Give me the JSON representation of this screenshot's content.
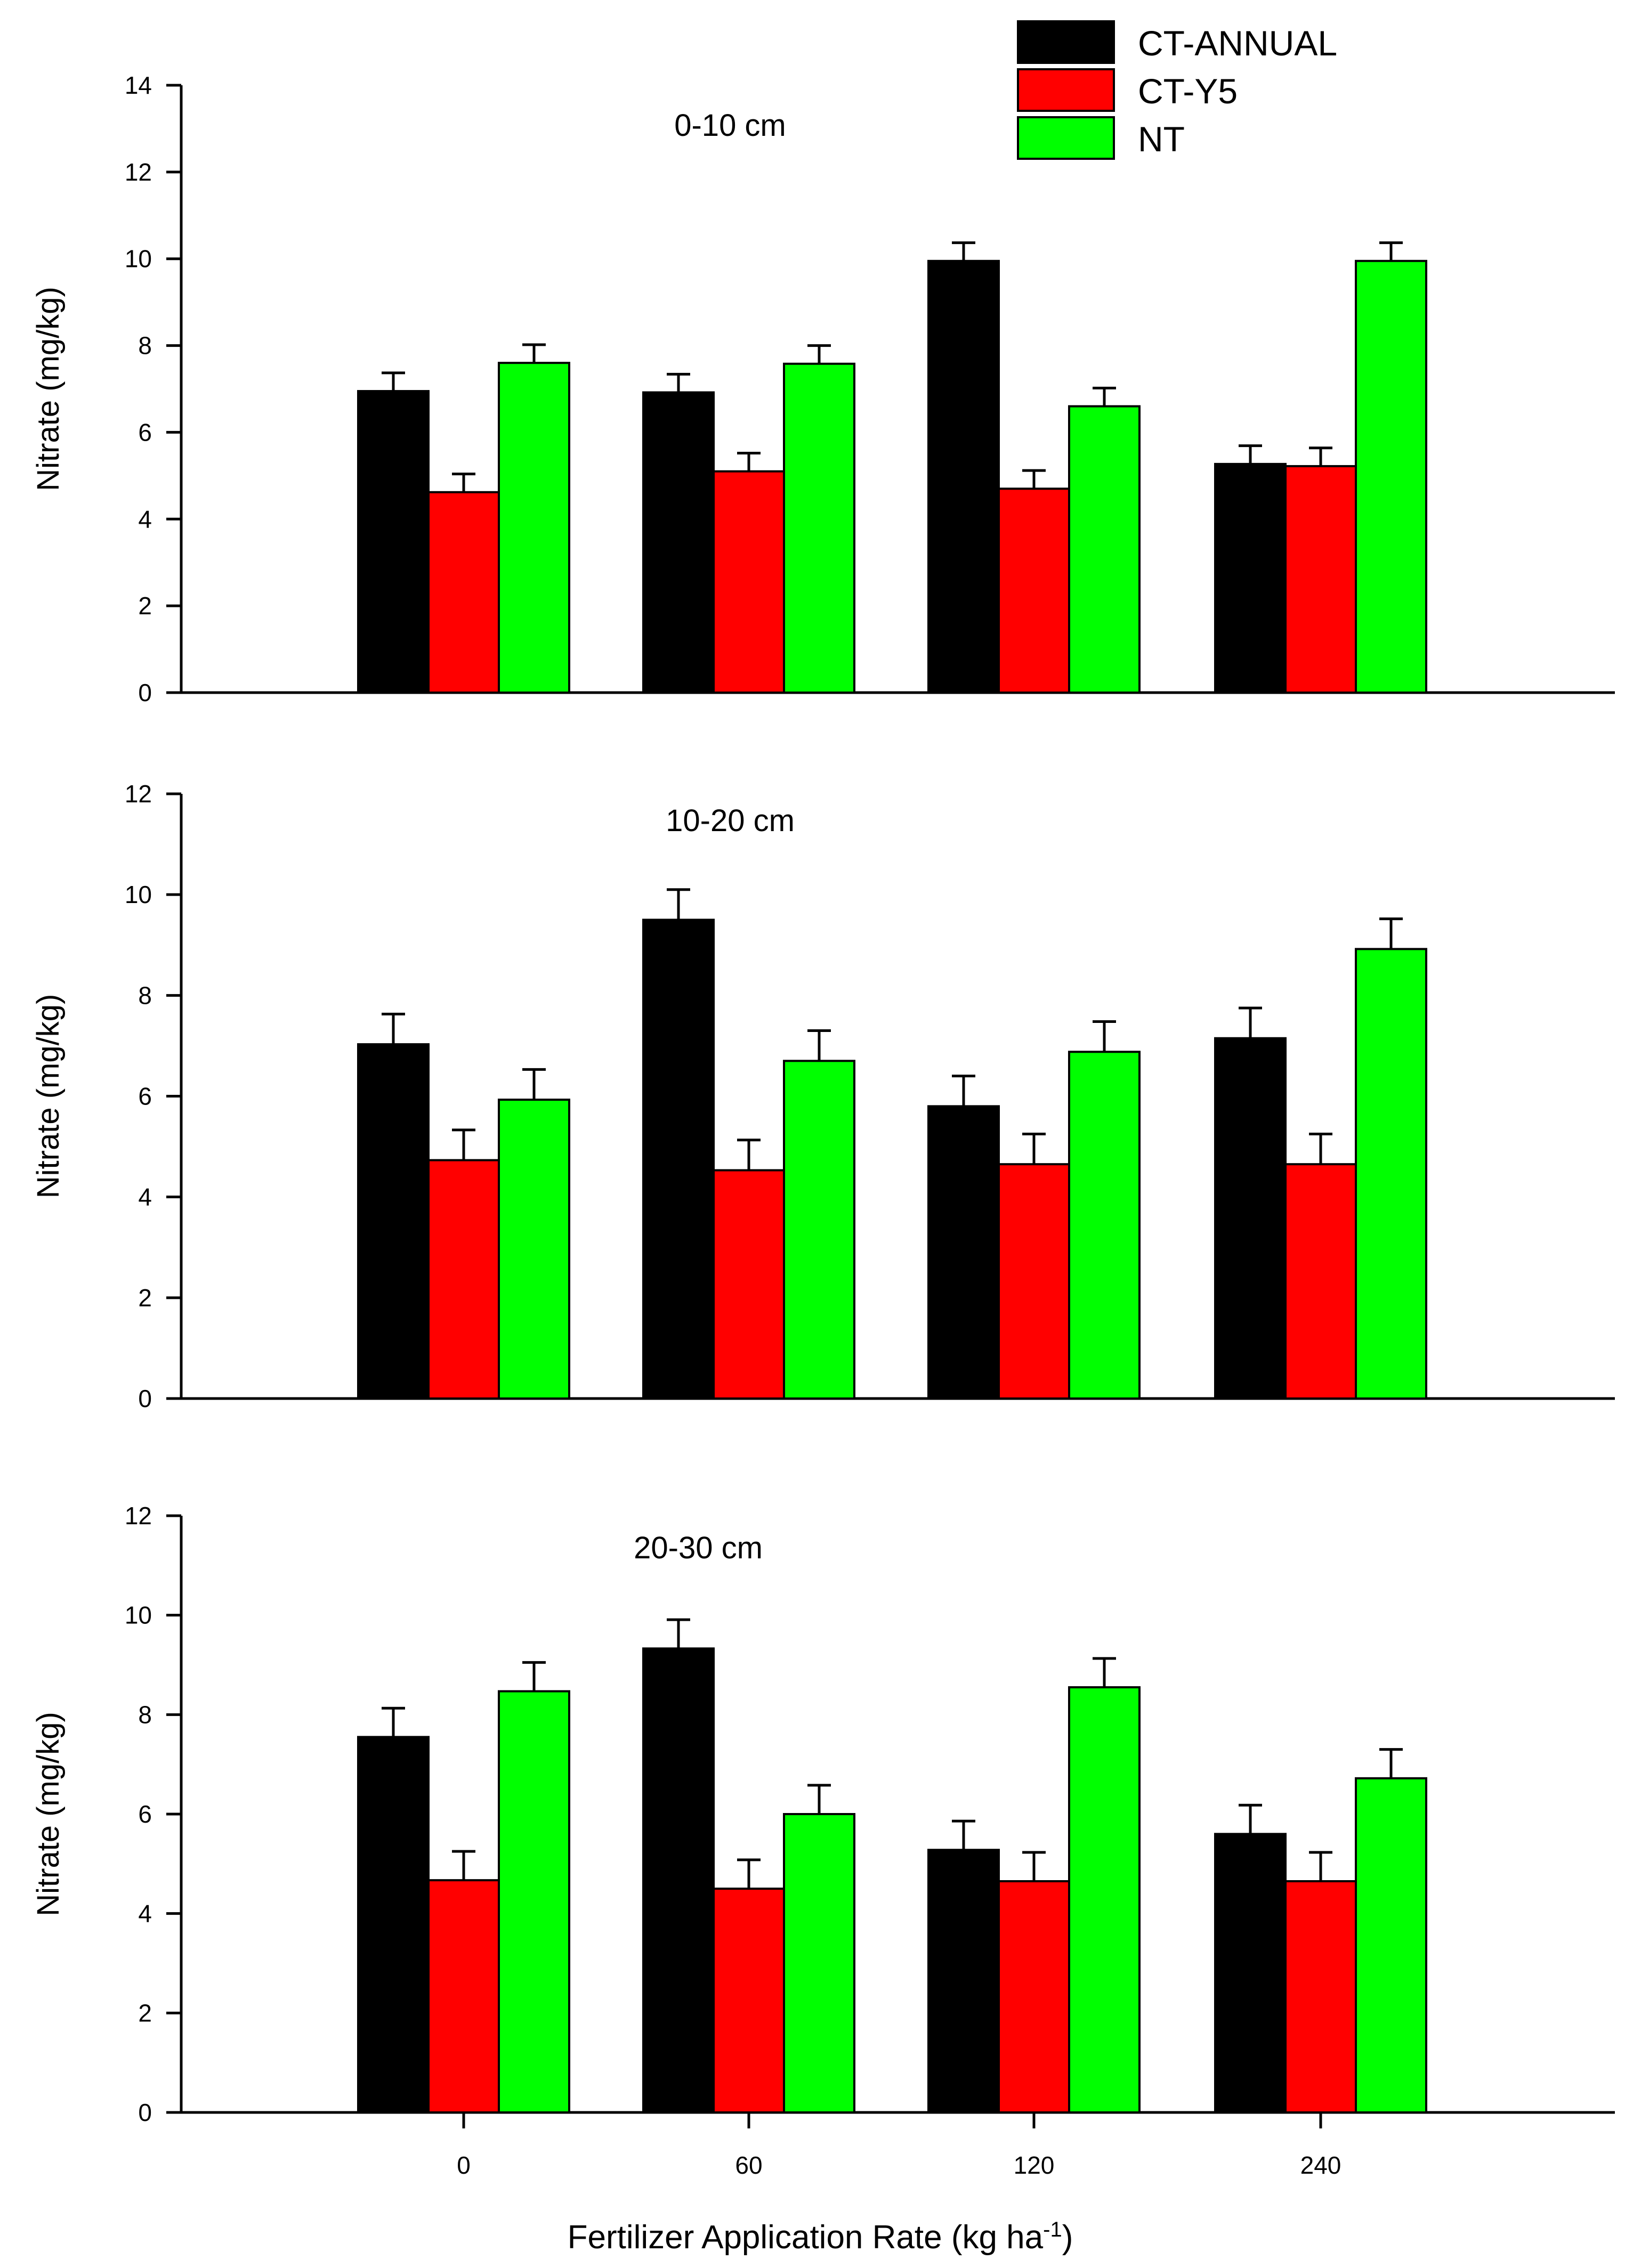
{
  "chart_data": {
    "type": "bar",
    "xlabel_main": "Fertilizer Application Rate (kg ha",
    "xlabel_sup": "-1",
    "xlabel_end": ")",
    "categories": [
      "0",
      "60",
      "120",
      "240"
    ],
    "legend": [
      {
        "name": "CT-ANNUAL",
        "color": "#000000"
      },
      {
        "name": "CT-Y5",
        "color": "#ff0000"
      },
      {
        "name": "NT",
        "color": "#00ff00"
      }
    ],
    "panels": [
      {
        "title": "0-10 cm",
        "ylabel": "Nitrate (mg/kg)",
        "ylim": [
          0,
          14
        ],
        "yticks": [
          "0",
          "2",
          "4",
          "6",
          "8",
          "10",
          "12",
          "14"
        ],
        "series": [
          {
            "name": "CT-ANNUAL",
            "values": [
              6.95,
              6.92,
              9.95,
              5.27
            ],
            "errors": [
              0.42,
              0.42,
              0.42,
              0.42
            ]
          },
          {
            "name": "CT-Y5",
            "values": [
              4.62,
              5.1,
              4.7,
              5.22
            ],
            "errors": [
              0.42,
              0.42,
              0.42,
              0.42
            ]
          },
          {
            "name": "NT",
            "values": [
              7.6,
              7.58,
              6.6,
              9.95
            ],
            "errors": [
              0.42,
              0.42,
              0.42,
              0.42
            ]
          }
        ]
      },
      {
        "title": "10-20 cm",
        "ylabel": "Nitrate (mg/kg)",
        "ylim": [
          0,
          12
        ],
        "yticks": [
          "0",
          "2",
          "4",
          "6",
          "8",
          "10",
          "12"
        ],
        "series": [
          {
            "name": "CT-ANNUAL",
            "values": [
              7.03,
              9.5,
              5.8,
              7.15
            ],
            "errors": [
              0.6,
              0.6,
              0.6,
              0.6
            ]
          },
          {
            "name": "CT-Y5",
            "values": [
              4.73,
              4.53,
              4.65,
              4.65
            ],
            "errors": [
              0.6,
              0.6,
              0.6,
              0.6
            ]
          },
          {
            "name": "NT",
            "values": [
              5.93,
              6.7,
              6.88,
              8.92
            ],
            "errors": [
              0.6,
              0.6,
              0.6,
              0.6
            ]
          }
        ]
      },
      {
        "title": "20-30 cm",
        "ylabel": "Nitrate (mg/kg)",
        "ylim": [
          0,
          12
        ],
        "yticks": [
          "0",
          "2",
          "4",
          "6",
          "8",
          "10",
          "12"
        ],
        "series": [
          {
            "name": "CT-ANNUAL",
            "values": [
              7.55,
              9.33,
              5.28,
              5.6
            ],
            "errors": [
              0.58,
              0.58,
              0.58,
              0.58
            ]
          },
          {
            "name": "CT-Y5",
            "values": [
              4.67,
              4.5,
              4.65,
              4.65
            ],
            "errors": [
              0.58,
              0.58,
              0.58,
              0.58
            ]
          },
          {
            "name": "NT",
            "values": [
              8.47,
              6.0,
              8.55,
              6.72
            ],
            "errors": [
              0.58,
              0.58,
              0.58,
              0.58
            ]
          }
        ]
      }
    ]
  }
}
